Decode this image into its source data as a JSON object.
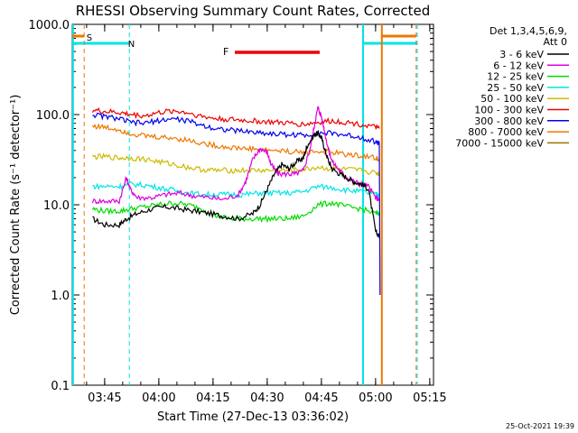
{
  "chart_data": {
    "type": "line",
    "title": "RHESSI Observing Summary Count Rates, Corrected",
    "xlabel": "Start Time (27-Dec-13 03:36:02)",
    "ylabel": "Corrected Count Rate (s⁻¹ detector⁻¹)",
    "y_scale": "log",
    "ylim": [
      0.1,
      1000
    ],
    "y_ticks": [
      {
        "value": 0.1,
        "label": "0.1"
      },
      {
        "value": 1,
        "label": "1.0"
      },
      {
        "value": 10,
        "label": "10.0"
      },
      {
        "value": 100,
        "label": "100.0"
      },
      {
        "value": 1000,
        "label": "1000.0"
      }
    ],
    "x_unit": "minutes after 03:36:02",
    "xlim": [
      0,
      100
    ],
    "x_ticks": [
      {
        "value": 8.97,
        "label": "03:45"
      },
      {
        "value": 23.97,
        "label": "04:00"
      },
      {
        "value": 38.97,
        "label": "04:15"
      },
      {
        "value": 53.97,
        "label": "04:30"
      },
      {
        "value": 68.97,
        "label": "04:45"
      },
      {
        "value": 83.97,
        "label": "05:00"
      },
      {
        "value": 98.97,
        "label": "05:15"
      }
    ],
    "legend": {
      "title_lines": [
        "Det 1,3,4,5,6,9,",
        "Att 0"
      ],
      "position": "top-right"
    },
    "series": [
      {
        "name": "3 - 6 keV",
        "color": "#000000",
        "x": [
          5.6,
          9,
          13,
          15,
          18,
          22,
          26,
          30,
          34,
          38,
          42,
          46,
          50,
          52,
          54,
          56,
          58,
          60,
          62,
          64,
          65,
          67,
          68,
          69,
          70,
          71,
          72,
          74,
          76,
          78,
          80,
          82,
          84,
          85
        ],
        "y": [
          7.0,
          6.0,
          6.0,
          7.0,
          8.0,
          9.0,
          9.5,
          9.0,
          8.5,
          8.0,
          7.5,
          7.0,
          8.0,
          10.0,
          15.0,
          22.0,
          28.0,
          25.0,
          30.0,
          33.0,
          45.0,
          60.0,
          62.0,
          55.0,
          40.0,
          30.0,
          25.0,
          22.0,
          20.0,
          18.0,
          17.0,
          15.0,
          5.0,
          4.5
        ]
      },
      {
        "name": "6 - 12 keV",
        "color": "#dd00dd",
        "x": [
          5.6,
          9,
          13,
          15,
          16,
          18,
          22,
          26,
          30,
          34,
          38,
          42,
          46,
          48,
          50,
          52,
          54,
          55,
          57,
          60,
          62,
          64,
          66,
          67,
          68,
          69,
          70,
          71,
          72,
          74,
          76,
          78,
          80,
          82,
          84,
          85
        ],
        "y": [
          11.0,
          11.0,
          11.0,
          20.0,
          15.0,
          12.0,
          12.0,
          13.0,
          13.5,
          12.5,
          12.0,
          11.5,
          13.0,
          18.0,
          32.0,
          42.0,
          38.0,
          28.0,
          22.0,
          22.0,
          22.0,
          24.0,
          45.0,
          75.0,
          120.0,
          95.0,
          60.0,
          40.0,
          30.0,
          24.0,
          20.0,
          18.0,
          17.0,
          16.0,
          12.0,
          11.5
        ]
      },
      {
        "name": "12 - 25 keV",
        "color": "#00dd00",
        "x": [
          5.6,
          9,
          13,
          16,
          20,
          24,
          28,
          32,
          36,
          40,
          44,
          48,
          52,
          56,
          60,
          64,
          68,
          72,
          76,
          80,
          84,
          85
        ],
        "y": [
          9.0,
          8.5,
          8.5,
          9.0,
          9.5,
          10.0,
          10.5,
          10.0,
          9.0,
          7.5,
          7.0,
          7.0,
          7.0,
          7.0,
          7.0,
          7.5,
          10.0,
          10.5,
          9.5,
          9.0,
          8.0,
          8.0
        ]
      },
      {
        "name": "25 - 50 keV",
        "color": "#00e5e5",
        "x": [
          5.6,
          9,
          13,
          16,
          20,
          24,
          28,
          32,
          36,
          40,
          44,
          48,
          52,
          56,
          60,
          64,
          68,
          72,
          76,
          80,
          84,
          85
        ],
        "y": [
          16.0,
          16.0,
          16.0,
          17.0,
          16.5,
          15.5,
          14.5,
          13.5,
          13.0,
          13.0,
          13.0,
          13.0,
          13.5,
          13.5,
          13.5,
          14.0,
          16.0,
          15.5,
          14.5,
          14.0,
          13.0,
          13.0
        ]
      },
      {
        "name": "50 - 100 keV",
        "color": "#ccbb00",
        "x": [
          5.6,
          9,
          13,
          16,
          20,
          24,
          28,
          32,
          36,
          40,
          44,
          48,
          52,
          56,
          60,
          64,
          68,
          72,
          76,
          80,
          84,
          85
        ],
        "y": [
          34.0,
          34.0,
          33.0,
          33.0,
          32.0,
          30.0,
          28.0,
          26.0,
          24.5,
          24.0,
          24.0,
          24.0,
          24.0,
          24.0,
          24.0,
          24.5,
          26.0,
          25.0,
          24.5,
          24.0,
          22.5,
          22.0
        ]
      },
      {
        "name": "100 - 300 keV",
        "color": "#ee0000",
        "x": [
          5.6,
          9,
          13,
          16,
          20,
          24,
          28,
          32,
          36,
          40,
          44,
          48,
          52,
          56,
          60,
          64,
          68,
          72,
          76,
          80,
          84,
          85
        ],
        "y": [
          112.0,
          108.0,
          105.0,
          100.0,
          97.0,
          105.0,
          110.0,
          105.0,
          95.0,
          90.0,
          88.0,
          86.0,
          84.0,
          82.0,
          80.0,
          78.0,
          82.0,
          85.0,
          82.0,
          78.0,
          72.0,
          70.0
        ]
      },
      {
        "name": "300 - 800 keV",
        "color": "#0000ee",
        "x": [
          5.6,
          9,
          13,
          16,
          20,
          24,
          28,
          32,
          36,
          40,
          44,
          48,
          52,
          56,
          60,
          64,
          68,
          72,
          76,
          80,
          84,
          85
        ],
        "y": [
          100.0,
          95.0,
          90.0,
          82.0,
          80.0,
          86.0,
          90.0,
          85.0,
          76.0,
          70.0,
          67.0,
          65.0,
          63.0,
          61.0,
          60.0,
          59.0,
          62.0,
          62.0,
          59.0,
          56.0,
          50.0,
          48.0
        ]
      },
      {
        "name": "800 - 7000 keV",
        "color": "#ee7700",
        "x": [
          5.6,
          9,
          13,
          16,
          20,
          24,
          28,
          32,
          36,
          40,
          44,
          48,
          52,
          56,
          60,
          64,
          68,
          72,
          76,
          80,
          84,
          85
        ],
        "y": [
          75.0,
          72.0,
          68.0,
          62.0,
          58.0,
          56.0,
          55.0,
          52.0,
          48.0,
          45.0,
          43.0,
          42.0,
          41.0,
          40.0,
          39.0,
          38.0,
          39.0,
          38.0,
          36.0,
          35.0,
          33.0,
          32.0
        ]
      },
      {
        "name": "7000 - 15000 keV",
        "color": "#997700",
        "x": [],
        "y": []
      }
    ],
    "markers": [
      {
        "label": "S",
        "x": 3.2,
        "color": "#ee7700",
        "style": "dashed"
      },
      {
        "label": "N",
        "x": 14.2,
        "color": "#00e5e5",
        "style": "dashed"
      }
    ],
    "flare_label": "F",
    "flare_bar": {
      "x": [
        45,
        68.5
      ],
      "color": "#ee0000"
    },
    "footer": "25-Oct-2021 19:39"
  }
}
